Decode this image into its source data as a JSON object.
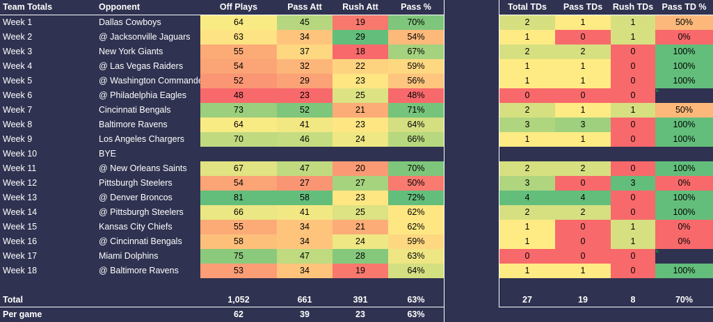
{
  "headers": {
    "team": "Team Totals",
    "opponent": "Opponent",
    "off_plays": "Off Plays",
    "pass_att": "Pass Att",
    "rush_att": "Rush Att",
    "pass_pct": "Pass %",
    "total_tds": "Total TDs",
    "pass_tds": "Pass TDs",
    "rush_tds": "Rush TDs",
    "pass_td_pct": "Pass TD %"
  },
  "colors": {
    "background": "#2f3250",
    "scale_red": "#f8696b",
    "scale_yellow": "#ffeb84",
    "scale_green": "#63be7b"
  },
  "rows": [
    {
      "week": "Week 1",
      "opponent": "Dallas Cowboys",
      "off_plays": "64",
      "pass_att": "45",
      "rush_att": "19",
      "pass_pct": "70%",
      "total_tds": "2",
      "pass_tds": "1",
      "rush_tds": "1",
      "pass_td_pct": "50%",
      "c": {
        "off_plays": "#f9eb84",
        "pass_att": "#b6d77f",
        "rush_att": "#f8786d",
        "pass_pct": "#7ec67b",
        "total_tds": "#d6e081",
        "pass_tds": "#ffeb84",
        "rush_tds": "#d6e081",
        "pass_td_pct": "#fcb87a"
      }
    },
    {
      "week": "Week 2",
      "opponent": "@ Jacksonville Jaguars",
      "off_plays": "63",
      "pass_att": "34",
      "rush_att": "29",
      "pass_pct": "54%",
      "total_tds": "1",
      "pass_tds": "0",
      "rush_tds": "1",
      "pass_td_pct": "0%",
      "c": {
        "off_plays": "#fde383",
        "pass_att": "#fec47c",
        "rush_att": "#63be7b",
        "pass_pct": "#fcb97a",
        "total_tds": "#ffeb84",
        "pass_tds": "#f8696b",
        "rush_tds": "#d6e081",
        "pass_td_pct": "#f8696b"
      }
    },
    {
      "week": "Week 3",
      "opponent": "New York Giants",
      "off_plays": "55",
      "pass_att": "37",
      "rush_att": "18",
      "pass_pct": "67%",
      "total_tds": "2",
      "pass_tds": "2",
      "rush_tds": "0",
      "pass_td_pct": "100%",
      "c": {
        "off_plays": "#fcab77",
        "pass_att": "#fed881",
        "rush_att": "#f8696b",
        "pass_pct": "#a5d27e",
        "total_tds": "#d6e081",
        "pass_tds": "#d6e081",
        "rush_tds": "#f8696b",
        "pass_td_pct": "#63be7b"
      }
    },
    {
      "week": "Week 4",
      "opponent": "@ Las Vegas Raiders",
      "off_plays": "54",
      "pass_att": "32",
      "rush_att": "22",
      "pass_pct": "59%",
      "total_tds": "1",
      "pass_tds": "1",
      "rush_tds": "0",
      "pass_td_pct": "100%",
      "c": {
        "off_plays": "#fba476",
        "pass_att": "#fdb67a",
        "rush_att": "#fdd380",
        "pass_pct": "#fed881",
        "total_tds": "#ffeb84",
        "pass_tds": "#ffeb84",
        "rush_tds": "#f8696b",
        "pass_td_pct": "#63be7b"
      }
    },
    {
      "week": "Week 5",
      "opponent": "@ Washington Commanders",
      "off_plays": "52",
      "pass_att": "29",
      "rush_att": "23",
      "pass_pct": "56%",
      "total_tds": "1",
      "pass_tds": "1",
      "rush_tds": "0",
      "pass_td_pct": "100%",
      "c": {
        "off_plays": "#fa9673",
        "pass_att": "#fba276",
        "rush_att": "#fee683",
        "pass_pct": "#fdc57d",
        "total_tds": "#ffeb84",
        "pass_tds": "#ffeb84",
        "rush_tds": "#f8696b",
        "pass_td_pct": "#63be7b"
      }
    },
    {
      "week": "Week 6",
      "opponent": "@ Philadelphia Eagles",
      "off_plays": "48",
      "pass_att": "23",
      "rush_att": "25",
      "pass_pct": "48%",
      "total_tds": "0",
      "pass_tds": "0",
      "rush_tds": "0",
      "pass_td_pct": "",
      "c": {
        "off_plays": "#f8696b",
        "pass_att": "#f8696b",
        "rush_att": "#dde282",
        "pass_pct": "#f8696b",
        "total_tds": "#f8696b",
        "pass_tds": "#f8696b",
        "rush_tds": "#f8696b",
        "pass_td_pct": ""
      }
    },
    {
      "week": "Week 7",
      "opponent": "Cincinnati Bengals",
      "off_plays": "73",
      "pass_att": "52",
      "rush_att": "21",
      "pass_pct": "71%",
      "total_tds": "2",
      "pass_tds": "1",
      "rush_tds": "1",
      "pass_td_pct": "50%",
      "c": {
        "off_plays": "#9bcf7d",
        "pass_att": "#7ec67b",
        "rush_att": "#fbac77",
        "pass_pct": "#76c47b",
        "total_tds": "#d6e081",
        "pass_tds": "#ffeb84",
        "rush_tds": "#d6e081",
        "pass_td_pct": "#fcb87a"
      }
    },
    {
      "week": "Week 8",
      "opponent": "Baltimore Ravens",
      "off_plays": "64",
      "pass_att": "41",
      "rush_att": "23",
      "pass_pct": "64%",
      "total_tds": "3",
      "pass_tds": "3",
      "rush_tds": "0",
      "pass_td_pct": "100%",
      "c": {
        "off_plays": "#f9eb84",
        "pass_att": "#f1e884",
        "rush_att": "#fee683",
        "pass_pct": "#d3df81",
        "total_tds": "#b0d57f",
        "pass_tds": "#9fd07e",
        "rush_tds": "#f8696b",
        "pass_td_pct": "#63be7b"
      }
    },
    {
      "week": "Week 9",
      "opponent": "Los Angeles Chargers",
      "off_plays": "70",
      "pass_att": "46",
      "rush_att": "24",
      "pass_pct": "66%",
      "total_tds": "1",
      "pass_tds": "1",
      "rush_tds": "0",
      "pass_td_pct": "100%",
      "c": {
        "off_plays": "#c0da80",
        "pass_att": "#c5dc80",
        "rush_att": "#eee783",
        "pass_pct": "#b8d87f",
        "total_tds": "#ffeb84",
        "pass_tds": "#ffeb84",
        "rush_tds": "#f8696b",
        "pass_td_pct": "#63be7b"
      }
    },
    {
      "week": "Week 10",
      "opponent": "BYE",
      "bye": true
    },
    {
      "week": "Week 11",
      "opponent": "@ New Orleans Saints",
      "off_plays": "67",
      "pass_att": "47",
      "rush_att": "20",
      "pass_pct": "70%",
      "total_tds": "2",
      "pass_tds": "2",
      "rush_tds": "0",
      "pass_td_pct": "100%",
      "c": {
        "off_plays": "#e2e383",
        "pass_att": "#c0da80",
        "rush_att": "#fa9a74",
        "pass_pct": "#7ec67b",
        "total_tds": "#d6e081",
        "pass_tds": "#d6e081",
        "rush_tds": "#f8696b",
        "pass_td_pct": "#63be7b"
      }
    },
    {
      "week": "Week 12",
      "opponent": "Pittsburgh Steelers",
      "off_plays": "54",
      "pass_att": "27",
      "rush_att": "27",
      "pass_pct": "50%",
      "total_tds": "3",
      "pass_tds": "0",
      "rush_tds": "3",
      "pass_td_pct": "0%",
      "c": {
        "off_plays": "#fba476",
        "pass_att": "#fa9573",
        "rush_att": "#a6d37e",
        "pass_pct": "#f97a6f",
        "total_tds": "#b0d57f",
        "pass_tds": "#f8696b",
        "rush_tds": "#63be7b",
        "pass_td_pct": "#f8696b"
      }
    },
    {
      "week": "Week 13",
      "opponent": "@ Denver Broncos",
      "off_plays": "81",
      "pass_att": "58",
      "rush_att": "23",
      "pass_pct": "72%",
      "total_tds": "4",
      "pass_tds": "4",
      "rush_tds": "0",
      "pass_td_pct": "100%",
      "c": {
        "off_plays": "#63be7b",
        "pass_att": "#63be7b",
        "rush_att": "#fee683",
        "pass_pct": "#63be7b",
        "total_tds": "#63be7b",
        "pass_tds": "#63be7b",
        "rush_tds": "#f8696b",
        "pass_td_pct": "#63be7b"
      }
    },
    {
      "week": "Week 14",
      "opponent": "@ Pittsburgh Steelers",
      "off_plays": "66",
      "pass_att": "41",
      "rush_att": "25",
      "pass_pct": "62%",
      "total_tds": "2",
      "pass_tds": "2",
      "rush_tds": "0",
      "pass_td_pct": "100%",
      "c": {
        "off_plays": "#eae784",
        "pass_att": "#f1e884",
        "rush_att": "#dde282",
        "pass_pct": "#fee783",
        "total_tds": "#d6e081",
        "pass_tds": "#d6e081",
        "rush_tds": "#f8696b",
        "pass_td_pct": "#63be7b"
      }
    },
    {
      "week": "Week 15",
      "opponent": "Kansas City Chiefs",
      "off_plays": "55",
      "pass_att": "34",
      "rush_att": "21",
      "pass_pct": "62%",
      "total_tds": "1",
      "pass_tds": "0",
      "rush_tds": "1",
      "pass_td_pct": "0%",
      "c": {
        "off_plays": "#fcab77",
        "pass_att": "#fec47c",
        "rush_att": "#fbac77",
        "pass_pct": "#fee783",
        "total_tds": "#ffeb84",
        "pass_tds": "#f8696b",
        "rush_tds": "#d6e081",
        "pass_td_pct": "#f8696b"
      }
    },
    {
      "week": "Week 16",
      "opponent": "@ Cincinnati Bengals",
      "off_plays": "58",
      "pass_att": "34",
      "rush_att": "24",
      "pass_pct": "59%",
      "total_tds": "1",
      "pass_tds": "0",
      "rush_tds": "1",
      "pass_td_pct": "0%",
      "c": {
        "off_plays": "#fdc07b",
        "pass_att": "#fec47c",
        "rush_att": "#eee783",
        "pass_pct": "#fed881",
        "total_tds": "#ffeb84",
        "pass_tds": "#f8696b",
        "rush_tds": "#d6e081",
        "pass_td_pct": "#f8696b"
      }
    },
    {
      "week": "Week 17",
      "opponent": "Miami Dolphins",
      "off_plays": "75",
      "pass_att": "47",
      "rush_att": "28",
      "pass_pct": "63%",
      "total_tds": "0",
      "pass_tds": "0",
      "rush_tds": "0",
      "pass_td_pct": "",
      "c": {
        "off_plays": "#8bc97c",
        "pass_att": "#c0da80",
        "rush_att": "#85c87c",
        "pass_pct": "#eee683",
        "total_tds": "#f8696b",
        "pass_tds": "#f8696b",
        "rush_tds": "#f8696b",
        "pass_td_pct": ""
      }
    },
    {
      "week": "Week 18",
      "opponent": "@ Baltimore Ravens",
      "off_plays": "53",
      "pass_att": "34",
      "rush_att": "19",
      "pass_pct": "64%",
      "total_tds": "1",
      "pass_tds": "1",
      "rush_tds": "0",
      "pass_td_pct": "100%",
      "c": {
        "off_plays": "#fb9d75",
        "pass_att": "#fec47c",
        "rush_att": "#f8786d",
        "pass_pct": "#d3df81",
        "total_tds": "#ffeb84",
        "pass_tds": "#ffeb84",
        "rush_tds": "#f8696b",
        "pass_td_pct": "#63be7b"
      }
    }
  ],
  "total": {
    "label": "Total",
    "off_plays": "1,052",
    "pass_att": "661",
    "rush_att": "391",
    "pass_pct": "63%",
    "total_tds": "27",
    "pass_tds": "19",
    "rush_tds": "8",
    "pass_td_pct": "70%"
  },
  "per_game": {
    "label": "Per game",
    "off_plays": "62",
    "pass_att": "39",
    "rush_att": "23",
    "pass_pct": "63%"
  }
}
